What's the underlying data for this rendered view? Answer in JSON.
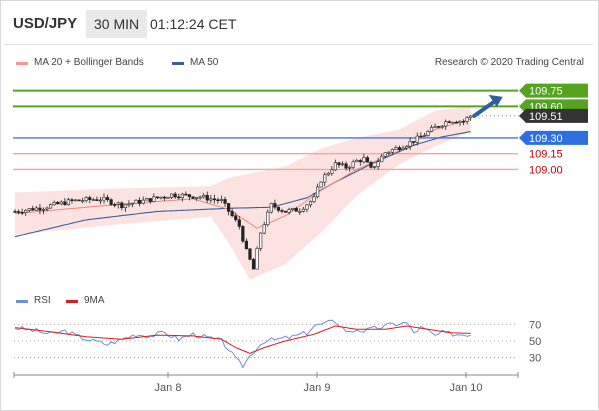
{
  "header": {
    "symbol": "USD/JPY",
    "timeframe": "30 MIN",
    "time": "01:12:24 CET"
  },
  "legend": {
    "bollinger_label": "MA 20 + Bollinger Bands",
    "ma50_label": "MA 50",
    "credit": "Research © 2020 Trading Central",
    "rsi_label": "RSI",
    "ma9_label": "9MA"
  },
  "colors": {
    "support_line": "#4a76d8",
    "resistance_line": "#55a31e",
    "target_line": "#f2a5a5",
    "last_price_bg": "#333333",
    "arrow": "#2e5f9e",
    "bollinger_band": "#fde2e2",
    "ma20": "#e8897e",
    "ma50": "#3c5f99",
    "rsi": "#6e8fd6",
    "ma9": "#d42020"
  },
  "chart_data": [
    {
      "type": "line",
      "title": "",
      "x_ticks": [
        "Jan 8",
        "Jan 9",
        "Jan 10"
      ],
      "ylim": [
        107.9,
        109.87
      ],
      "candle_count": 129,
      "price_path": [
        [
          0,
          108.6
        ],
        [
          8,
          108.64
        ],
        [
          16,
          108.7
        ],
        [
          24,
          108.72
        ],
        [
          30,
          108.66
        ],
        [
          36,
          108.7
        ],
        [
          44,
          108.76
        ],
        [
          52,
          108.74
        ],
        [
          58,
          108.7
        ],
        [
          63,
          108.46
        ],
        [
          65,
          108.22
        ],
        [
          67,
          108.05
        ],
        [
          69,
          108.4
        ],
        [
          72,
          108.66
        ],
        [
          76,
          108.6
        ],
        [
          80,
          108.62
        ],
        [
          84,
          108.72
        ],
        [
          86,
          108.9
        ],
        [
          90,
          109.05
        ],
        [
          93,
          109.02
        ],
        [
          96,
          109.08
        ],
        [
          98,
          109.1
        ],
        [
          100,
          109.0
        ],
        [
          104,
          109.16
        ],
        [
          110,
          109.24
        ],
        [
          114,
          109.31
        ],
        [
          118,
          109.4
        ],
        [
          122,
          109.47
        ],
        [
          126,
          109.46
        ],
        [
          128,
          109.51
        ]
      ],
      "ma50_path": [
        [
          0,
          108.36
        ],
        [
          20,
          108.52
        ],
        [
          40,
          108.6
        ],
        [
          60,
          108.63
        ],
        [
          72,
          108.64
        ],
        [
          82,
          108.73
        ],
        [
          90,
          108.88
        ],
        [
          100,
          109.05
        ],
        [
          112,
          109.23
        ],
        [
          120,
          109.31
        ],
        [
          128,
          109.36
        ]
      ],
      "ma20_path": [
        [
          0,
          108.58
        ],
        [
          30,
          108.67
        ],
        [
          50,
          108.72
        ],
        [
          60,
          108.62
        ],
        [
          68,
          108.44
        ],
        [
          76,
          108.56
        ],
        [
          86,
          108.8
        ],
        [
          96,
          109.0
        ],
        [
          108,
          109.18
        ],
        [
          118,
          109.38
        ],
        [
          128,
          109.48
        ]
      ],
      "bollinger_upper_path": [
        [
          0,
          108.78
        ],
        [
          30,
          108.82
        ],
        [
          55,
          108.84
        ],
        [
          60,
          108.92
        ],
        [
          66,
          108.96
        ],
        [
          76,
          109.03
        ],
        [
          86,
          109.2
        ],
        [
          96,
          109.3
        ],
        [
          108,
          109.38
        ],
        [
          118,
          109.56
        ],
        [
          128,
          109.6
        ]
      ],
      "bollinger_lower_path": [
        [
          0,
          108.38
        ],
        [
          30,
          108.48
        ],
        [
          55,
          108.55
        ],
        [
          60,
          108.3
        ],
        [
          66,
          107.95
        ],
        [
          76,
          108.1
        ],
        [
          86,
          108.4
        ],
        [
          96,
          108.75
        ],
        [
          108,
          109.05
        ],
        [
          118,
          109.22
        ],
        [
          128,
          109.36
        ]
      ],
      "levels": [
        {
          "value": "109.75",
          "kind": "resistance"
        },
        {
          "value": "109.60",
          "kind": "resistance"
        },
        {
          "value": "109.51",
          "kind": "last"
        },
        {
          "value": "109.30",
          "kind": "support"
        },
        {
          "value": "109.15",
          "kind": "target"
        },
        {
          "value": "109.00",
          "kind": "target"
        }
      ],
      "arrow": {
        "from": [
          129,
          109.51
        ],
        "to": [
          137,
          109.69
        ]
      }
    },
    {
      "type": "line",
      "title": "",
      "ylim": [
        15,
        80
      ],
      "y_ticks": [
        "70",
        "50",
        "30"
      ],
      "rsi_path": [
        [
          0,
          66
        ],
        [
          6,
          62
        ],
        [
          10,
          58
        ],
        [
          14,
          62
        ],
        [
          18,
          55
        ],
        [
          22,
          50
        ],
        [
          26,
          46
        ],
        [
          30,
          52
        ],
        [
          34,
          58
        ],
        [
          38,
          56
        ],
        [
          42,
          60
        ],
        [
          46,
          52
        ],
        [
          50,
          58
        ],
        [
          54,
          54
        ],
        [
          58,
          50
        ],
        [
          60,
          40
        ],
        [
          62,
          28
        ],
        [
          64,
          20
        ],
        [
          66,
          32
        ],
        [
          68,
          42
        ],
        [
          70,
          50
        ],
        [
          74,
          52
        ],
        [
          78,
          55
        ],
        [
          82,
          60
        ],
        [
          84,
          68
        ],
        [
          88,
          72
        ],
        [
          90,
          74
        ],
        [
          92,
          66
        ],
        [
          94,
          60
        ],
        [
          96,
          64
        ],
        [
          98,
          62
        ],
        [
          102,
          66
        ],
        [
          106,
          70
        ],
        [
          110,
          72
        ],
        [
          112,
          60
        ],
        [
          114,
          66
        ],
        [
          116,
          62
        ],
        [
          118,
          56
        ],
        [
          120,
          60
        ],
        [
          124,
          58
        ],
        [
          128,
          58
        ]
      ],
      "ma9_path": [
        [
          0,
          66
        ],
        [
          10,
          61
        ],
        [
          20,
          55
        ],
        [
          30,
          52
        ],
        [
          40,
          57
        ],
        [
          50,
          56
        ],
        [
          58,
          52
        ],
        [
          62,
          42
        ],
        [
          66,
          35
        ],
        [
          70,
          42
        ],
        [
          76,
          50
        ],
        [
          84,
          58
        ],
        [
          90,
          68
        ],
        [
          96,
          64
        ],
        [
          104,
          64
        ],
        [
          110,
          68
        ],
        [
          116,
          64
        ],
        [
          122,
          60
        ],
        [
          128,
          59
        ]
      ]
    }
  ]
}
